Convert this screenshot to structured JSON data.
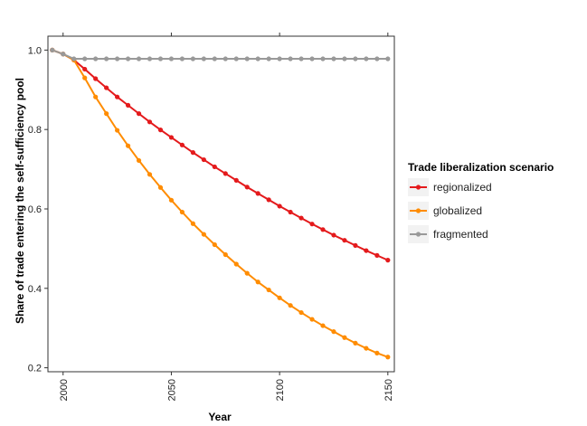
{
  "chart_data": {
    "type": "line",
    "title": "",
    "xlabel": "Year",
    "ylabel": "Share of trade entering the self-sufficiency pool",
    "xlim": [
      1993,
      2153
    ],
    "ylim": [
      0.19,
      1.035
    ],
    "x_ticks": [
      2000,
      2050,
      2100,
      2150
    ],
    "y_ticks": [
      0.2,
      0.4,
      0.6,
      0.8,
      1.0
    ],
    "x_tick_labels": [
      "2000",
      "2050",
      "2100",
      "2150"
    ],
    "y_tick_labels": [
      "0.2",
      "0.4",
      "0.6",
      "0.8",
      "1.0"
    ],
    "grid": false,
    "legend": {
      "title": "Trade liberalization scenario",
      "position": "right"
    },
    "x": [
      1995,
      2000,
      2005,
      2010,
      2015,
      2020,
      2025,
      2030,
      2035,
      2040,
      2045,
      2050,
      2055,
      2060,
      2065,
      2070,
      2075,
      2080,
      2085,
      2090,
      2095,
      2100,
      2105,
      2110,
      2115,
      2120,
      2125,
      2130,
      2135,
      2140,
      2145,
      2150
    ],
    "series": [
      {
        "name": "regionalized",
        "color": "#e41a1c",
        "values": [
          1.0,
          0.99,
          0.975,
          0.952,
          0.928,
          0.905,
          0.882,
          0.861,
          0.84,
          0.819,
          0.799,
          0.78,
          0.761,
          0.742,
          0.724,
          0.706,
          0.689,
          0.672,
          0.655,
          0.639,
          0.623,
          0.607,
          0.592,
          0.577,
          0.562,
          0.548,
          0.534,
          0.521,
          0.508,
          0.495,
          0.483,
          0.471
        ]
      },
      {
        "name": "globalized",
        "color": "#ff8c00",
        "values": [
          1.0,
          0.99,
          0.975,
          0.93,
          0.882,
          0.84,
          0.798,
          0.759,
          0.722,
          0.687,
          0.654,
          0.622,
          0.592,
          0.563,
          0.536,
          0.51,
          0.485,
          0.461,
          0.438,
          0.416,
          0.396,
          0.376,
          0.357,
          0.339,
          0.322,
          0.306,
          0.291,
          0.276,
          0.262,
          0.249,
          0.237,
          0.227
        ]
      },
      {
        "name": "fragmented",
        "color": "#999999",
        "values": [
          1.0,
          0.99,
          0.978,
          0.978,
          0.978,
          0.978,
          0.978,
          0.978,
          0.978,
          0.978,
          0.978,
          0.978,
          0.978,
          0.978,
          0.978,
          0.978,
          0.978,
          0.978,
          0.978,
          0.978,
          0.978,
          0.978,
          0.978,
          0.978,
          0.978,
          0.978,
          0.978,
          0.978,
          0.978,
          0.978,
          0.978,
          0.978
        ]
      }
    ]
  }
}
